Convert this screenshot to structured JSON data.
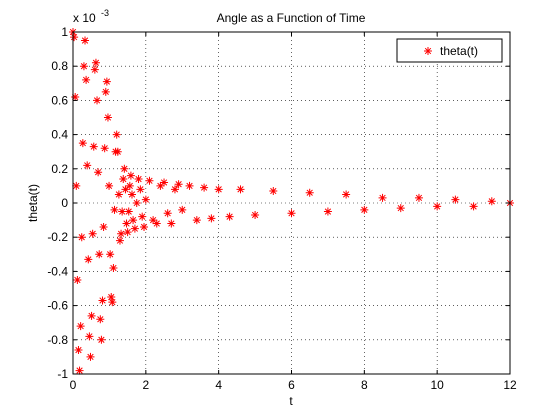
{
  "chart_data": {
    "type": "scatter",
    "title": "Angle as a Function of Time",
    "xlabel": "t",
    "ylabel": "theta(t)",
    "y_exponent_label": "x 10",
    "y_exponent_power": "-3",
    "xlim": [
      0,
      12
    ],
    "ylim": [
      -1,
      1
    ],
    "x_ticks": [
      0,
      2,
      4,
      6,
      8,
      10,
      12
    ],
    "y_ticks": [
      -1,
      -0.8,
      -0.6,
      -0.4,
      -0.2,
      0,
      0.2,
      0.4,
      0.6,
      0.8,
      1
    ],
    "x_tick_labels": [
      "0",
      "2",
      "4",
      "6",
      "8",
      "10",
      "12"
    ],
    "y_tick_labels": [
      "-1",
      "-0.8",
      "-0.6",
      "-0.4",
      "-0.2",
      "0",
      "0.2",
      "0.4",
      "0.6",
      "0.8",
      "1"
    ],
    "grid": true,
    "legend_position": "top-right",
    "series": [
      {
        "name": "theta(t)",
        "color": "#ff0000",
        "marker": "asterisk",
        "line": "none",
        "points": [
          [
            0.0,
            1.0
          ],
          [
            0.03,
            0.97
          ],
          [
            0.06,
            0.62
          ],
          [
            0.09,
            0.1
          ],
          [
            0.12,
            -0.45
          ],
          [
            0.15,
            -0.86
          ],
          [
            0.18,
            -0.98
          ],
          [
            0.21,
            -0.72
          ],
          [
            0.24,
            -0.2
          ],
          [
            0.27,
            0.35
          ],
          [
            0.3,
            0.8
          ],
          [
            0.33,
            0.95
          ],
          [
            0.36,
            0.72
          ],
          [
            0.39,
            0.22
          ],
          [
            0.42,
            -0.33
          ],
          [
            0.45,
            -0.78
          ],
          [
            0.48,
            -0.9
          ],
          [
            0.51,
            -0.66
          ],
          [
            0.54,
            -0.18
          ],
          [
            0.57,
            0.33
          ],
          [
            0.6,
            0.78
          ],
          [
            0.63,
            0.82
          ],
          [
            0.66,
            0.6
          ],
          [
            0.69,
            0.18
          ],
          [
            0.72,
            -0.3
          ],
          [
            0.75,
            -0.68
          ],
          [
            0.78,
            -0.8
          ],
          [
            0.81,
            -0.57
          ],
          [
            0.84,
            -0.14
          ],
          [
            0.87,
            0.32
          ],
          [
            0.9,
            0.65
          ],
          [
            0.93,
            0.71
          ],
          [
            0.96,
            0.5
          ],
          [
            0.99,
            0.1
          ],
          [
            1.02,
            -0.3
          ],
          [
            1.05,
            -0.55
          ],
          [
            1.08,
            -0.58
          ],
          [
            1.11,
            -0.38
          ],
          [
            1.14,
            -0.04
          ],
          [
            1.17,
            0.3
          ],
          [
            1.2,
            0.4
          ],
          [
            1.23,
            0.3
          ],
          [
            1.26,
            0.05
          ],
          [
            1.29,
            -0.22
          ],
          [
            1.32,
            -0.18
          ],
          [
            1.35,
            -0.05
          ],
          [
            1.38,
            0.14
          ],
          [
            1.41,
            0.2
          ],
          [
            1.44,
            0.08
          ],
          [
            1.47,
            -0.12
          ],
          [
            1.5,
            -0.17
          ],
          [
            1.53,
            -0.05
          ],
          [
            1.56,
            0.1
          ],
          [
            1.59,
            0.16
          ],
          [
            1.62,
            0.05
          ],
          [
            1.65,
            -0.1
          ],
          [
            1.7,
            -0.15
          ],
          [
            1.75,
            0.0
          ],
          [
            1.8,
            0.14
          ],
          [
            1.85,
            0.08
          ],
          [
            1.9,
            -0.08
          ],
          [
            1.95,
            -0.14
          ],
          [
            2.0,
            0.02
          ],
          [
            2.1,
            0.13
          ],
          [
            2.2,
            -0.1
          ],
          [
            2.3,
            -0.12
          ],
          [
            2.4,
            0.1
          ],
          [
            2.5,
            0.12
          ],
          [
            2.6,
            -0.06
          ],
          [
            2.7,
            -0.12
          ],
          [
            2.8,
            0.08
          ],
          [
            2.9,
            0.11
          ],
          [
            3.0,
            -0.04
          ],
          [
            3.2,
            0.1
          ],
          [
            3.4,
            -0.1
          ],
          [
            3.6,
            0.09
          ],
          [
            3.8,
            -0.09
          ],
          [
            4.0,
            0.08
          ],
          [
            4.3,
            -0.08
          ],
          [
            4.6,
            0.08
          ],
          [
            5.0,
            -0.07
          ],
          [
            5.5,
            0.07
          ],
          [
            6.0,
            -0.06
          ],
          [
            6.5,
            0.06
          ],
          [
            7.0,
            -0.05
          ],
          [
            7.5,
            0.05
          ],
          [
            8.0,
            -0.04
          ],
          [
            8.5,
            0.03
          ],
          [
            9.0,
            -0.03
          ],
          [
            9.5,
            0.03
          ],
          [
            10.0,
            -0.02
          ],
          [
            10.5,
            0.02
          ],
          [
            11.0,
            -0.02
          ],
          [
            11.5,
            0.01
          ],
          [
            12.0,
            0.0
          ]
        ]
      }
    ]
  }
}
